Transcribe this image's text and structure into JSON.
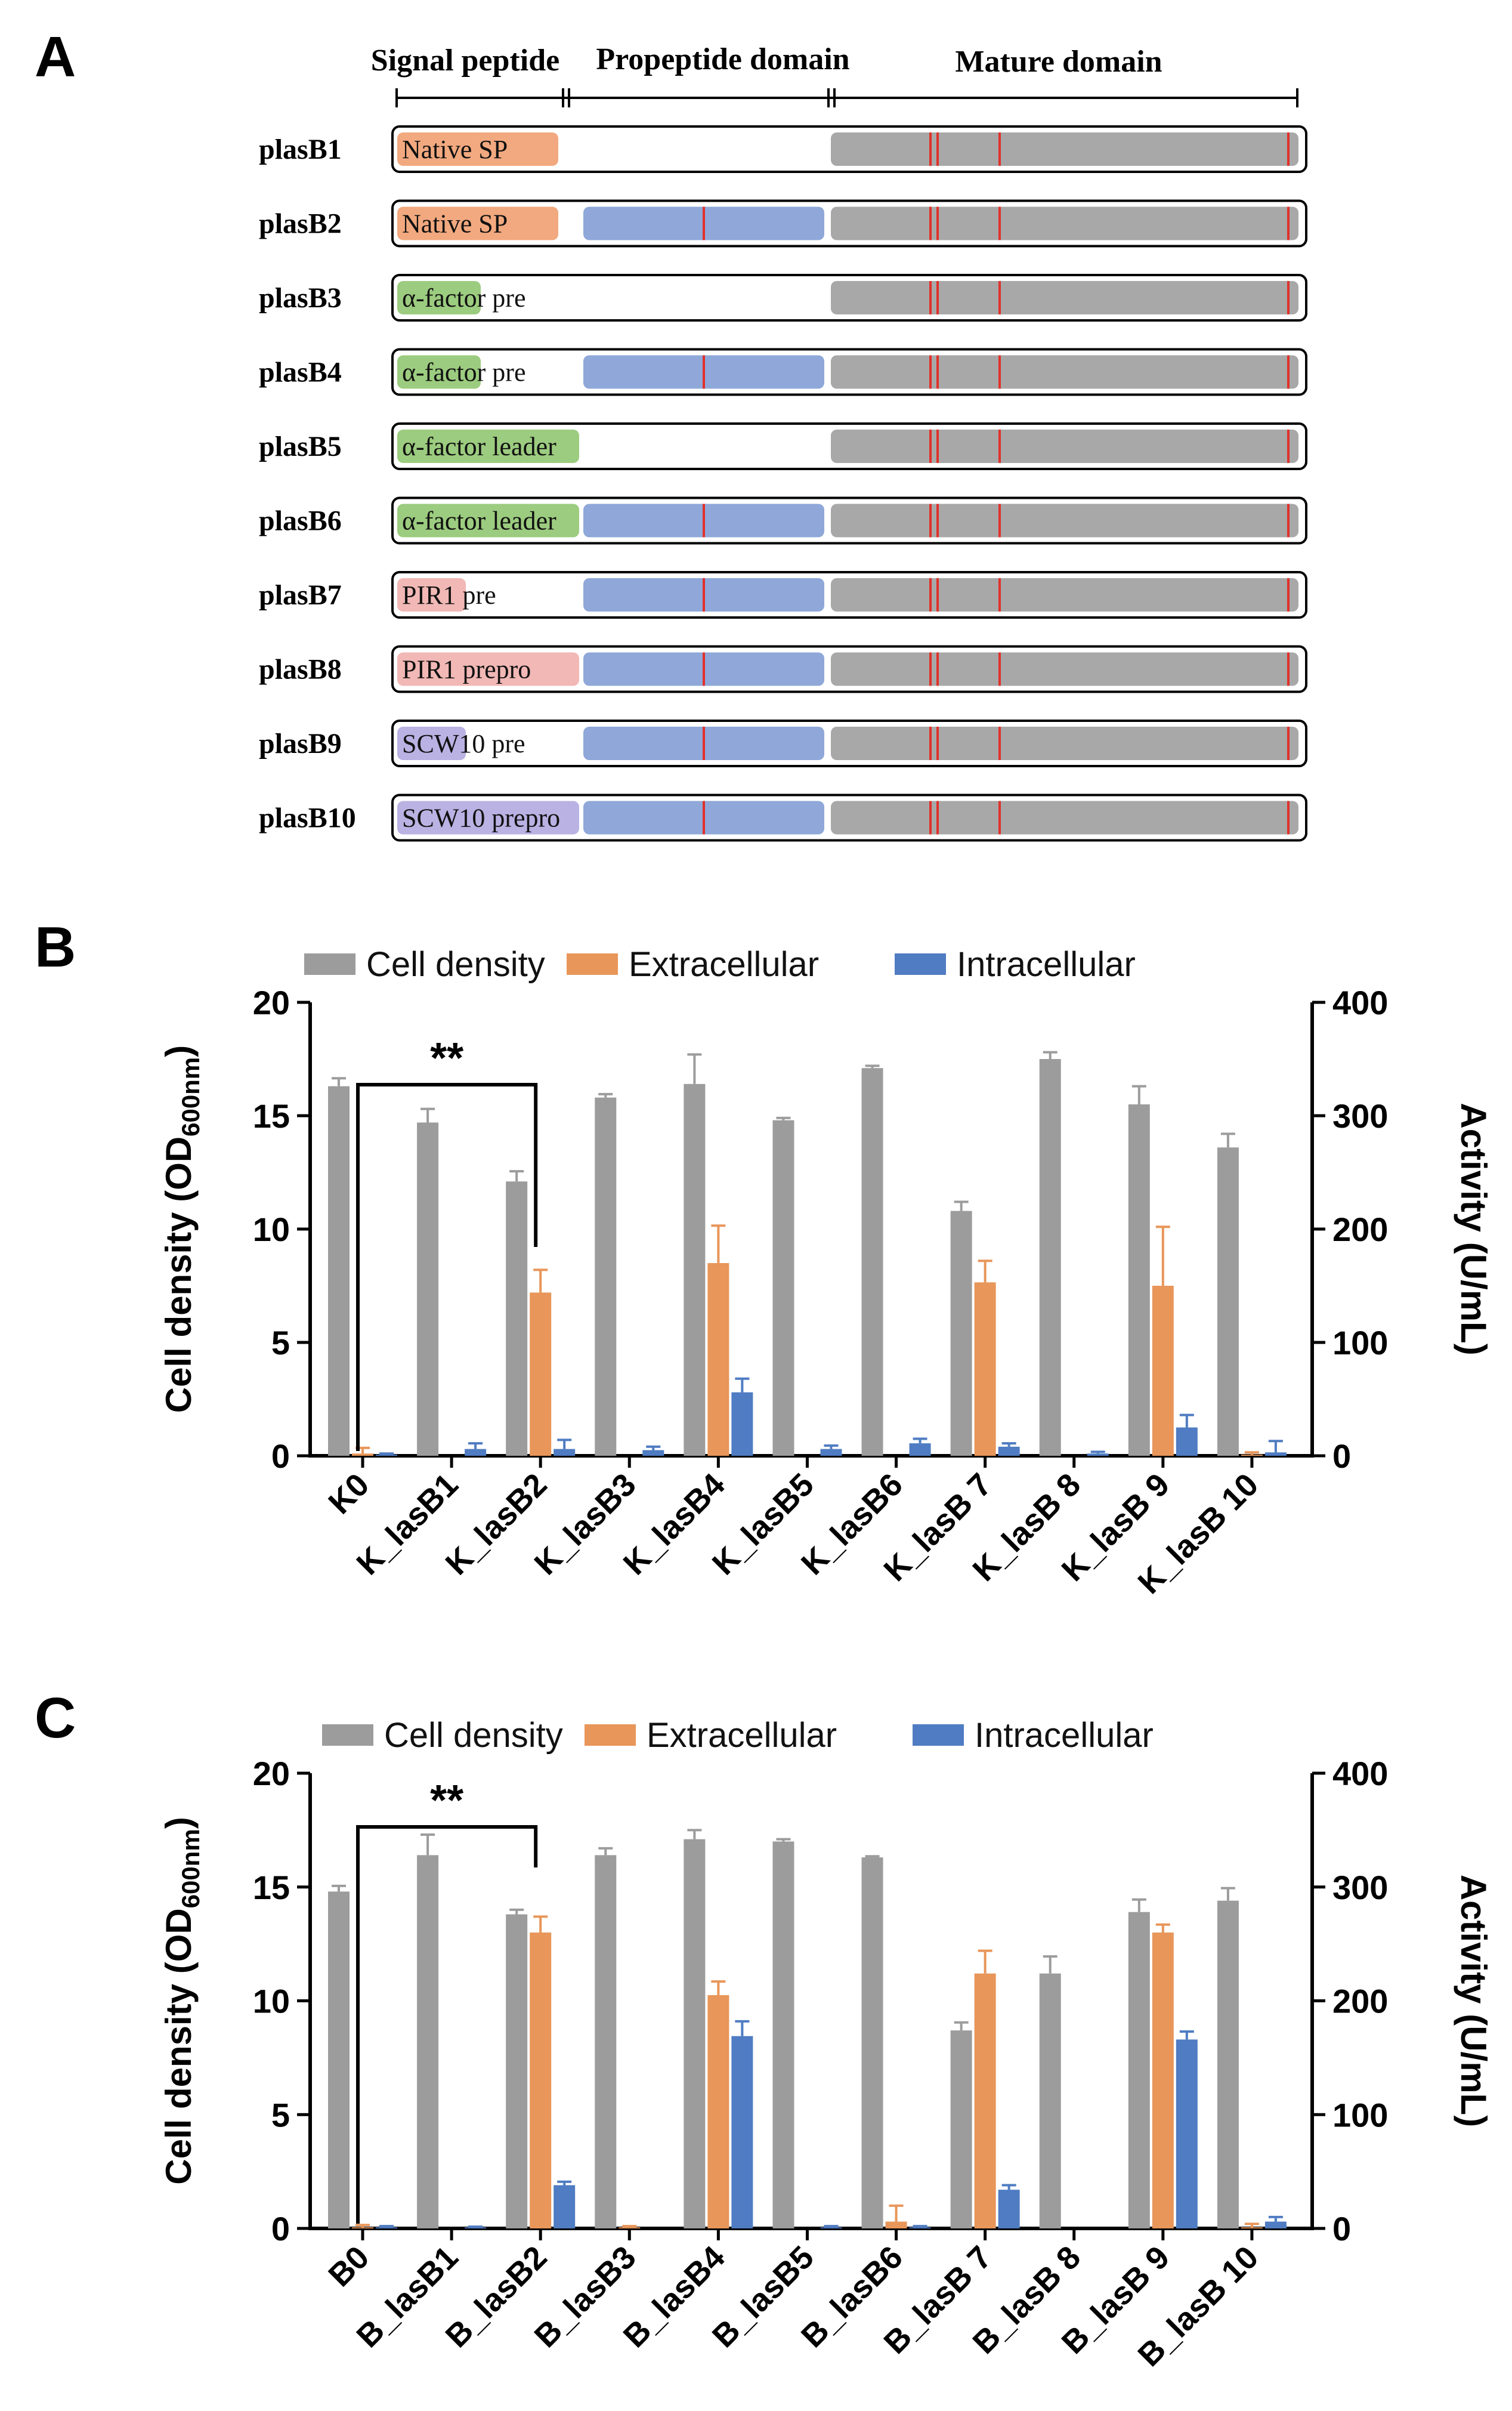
{
  "colors": {
    "gray": "#9c9c9c",
    "orange": "#e8965a",
    "blue": "#4f7cc2",
    "native_sp": "#f2a97f",
    "alpha_factor": "#9ccc7f",
    "pir1": "#f1b8b5",
    "scw10": "#b9b2e3",
    "propeptide": "#8fa8d9",
    "mature": "#a8a8a8",
    "mutation": "#e0312b"
  },
  "panel_a": {
    "label": "A",
    "headers": {
      "signal": "Signal peptide",
      "propeptide": "Propeptide domain",
      "mature": "Mature domain"
    },
    "constructs": [
      {
        "name": "plasB1",
        "sp_pre": "Native SP",
        "sp_post": "",
        "sp_color": "native_sp",
        "propeptide": false
      },
      {
        "name": "plasB2",
        "sp_pre": "Native SP",
        "sp_post": "",
        "sp_color": "native_sp",
        "propeptide": true
      },
      {
        "name": "plasB3",
        "sp_pre": "α-facto",
        "sp_post": "r pre",
        "sp_color": "alpha_factor",
        "propeptide": false
      },
      {
        "name": "plasB4",
        "sp_pre": "α-facto",
        "sp_post": "r pre",
        "sp_color": "alpha_factor",
        "propeptide": true
      },
      {
        "name": "plasB5",
        "sp_pre": "α-factor leader",
        "sp_post": "",
        "sp_color": "alpha_factor",
        "propeptide": false
      },
      {
        "name": "plasB6",
        "sp_pre": "α-factor leader",
        "sp_post": "",
        "sp_color": "alpha_factor",
        "propeptide": true
      },
      {
        "name": "plasB7",
        "sp_pre": "PIR1",
        "sp_post": " pre",
        "sp_color": "pir1",
        "propeptide": true
      },
      {
        "name": "plasB8",
        "sp_pre": "PIR1 prepro",
        "sp_post": "",
        "sp_color": "pir1",
        "propeptide": true
      },
      {
        "name": "plasB9",
        "sp_pre": "SCW1",
        "sp_post": "0 pre",
        "sp_color": "scw10",
        "propeptide": true
      },
      {
        "name": "plasB10",
        "sp_pre": "SCW10 prepro",
        "sp_post": "",
        "sp_color": "scw10",
        "propeptide": true
      }
    ]
  },
  "chart_data": [
    {
      "panel": "B",
      "type": "bar",
      "legend": [
        "Cell density",
        "Extracellular",
        "Intracellular"
      ],
      "legend_position": "top",
      "categories": [
        "K0",
        "K_lasB1",
        "K_lasB2",
        "K_lasB3",
        "K_lasB4",
        "K_lasB5",
        "K_lasB6",
        "K_lasB 7",
        "K_lasB 8",
        "K_lasB 9",
        "K_lasB 10"
      ],
      "ylabel_left": "Cell density (OD600nm)",
      "ylabel_right": "Activity (U/mL)",
      "ylim_left": [
        0,
        20
      ],
      "ylim_right": [
        0,
        400
      ],
      "yticks_left": [
        "0",
        "5",
        "10",
        "15",
        "20"
      ],
      "yticks_right": [
        "0",
        "100",
        "200",
        "300",
        "400"
      ],
      "series": [
        {
          "name": "Cell density",
          "axis": "left",
          "values": [
            16.3,
            14.7,
            12.1,
            15.8,
            16.4,
            14.8,
            17.1,
            10.8,
            17.5,
            15.5,
            13.6
          ],
          "errors": [
            0.35,
            0.6,
            0.45,
            0.15,
            1.3,
            0.1,
            0.1,
            0.4,
            0.3,
            0.8,
            0.6
          ]
        },
        {
          "name": "Extracellular",
          "axis": "right",
          "values": [
            2,
            0,
            144,
            0,
            170,
            0,
            0,
            153,
            0,
            150,
            1
          ],
          "errors": [
            5,
            0,
            20,
            0,
            33,
            0,
            0,
            19,
            0,
            52,
            2
          ]
        },
        {
          "name": "Intracellular",
          "axis": "right",
          "values": [
            1,
            6,
            6,
            5,
            56,
            6,
            11,
            8,
            2,
            25,
            3
          ],
          "errors": [
            1,
            5,
            8,
            3,
            12,
            3,
            4,
            3,
            1.5,
            11,
            10
          ]
        }
      ],
      "annotation": {
        "text": "**",
        "from": "K0",
        "to": "K_lasB2"
      }
    },
    {
      "panel": "C",
      "type": "bar",
      "legend": [
        "Cell density",
        "Extracellular",
        "Intracellular"
      ],
      "legend_position": "top",
      "categories": [
        "B0",
        "B_lasB1",
        "B_lasB2",
        "B_lasB3",
        "B_lasB4",
        "B_lasB5",
        "B_lasB6",
        "B_lasB 7",
        "B_lasB 8",
        "B_lasB 9",
        "B_lasB 10"
      ],
      "ylabel_left": "Cell density (OD600nm)",
      "ylabel_right": "Activity (U/mL)",
      "ylim_left": [
        0,
        20
      ],
      "ylim_right": [
        0,
        400
      ],
      "yticks_left": [
        "0",
        "5",
        "10",
        "15",
        "20"
      ],
      "yticks_right": [
        "0",
        "100",
        "200",
        "300",
        "400"
      ],
      "series": [
        {
          "name": "Cell density",
          "axis": "left",
          "values": [
            14.8,
            16.4,
            13.8,
            16.4,
            17.1,
            17.0,
            16.3,
            8.7,
            11.2,
            13.9,
            14.4
          ],
          "errors": [
            0.25,
            0.9,
            0.2,
            0.3,
            0.4,
            0.1,
            0.05,
            0.35,
            0.75,
            0.55,
            0.55
          ]
        },
        {
          "name": "Extracellular",
          "axis": "right",
          "values": [
            1,
            0,
            260,
            1,
            205,
            0,
            6,
            224,
            0,
            260,
            1
          ],
          "errors": [
            2,
            0,
            14,
            1,
            12,
            0,
            14,
            20,
            0,
            7,
            3
          ]
        },
        {
          "name": "Intracellular",
          "axis": "right",
          "values": [
            1,
            1,
            38,
            0,
            169,
            1,
            1,
            34,
            0,
            166,
            6
          ],
          "errors": [
            1,
            0.5,
            3,
            0,
            13,
            1,
            1,
            4,
            0,
            7,
            4
          ]
        }
      ],
      "annotation": {
        "text": "**",
        "from": "B0",
        "to": "B_lasB2"
      }
    }
  ]
}
